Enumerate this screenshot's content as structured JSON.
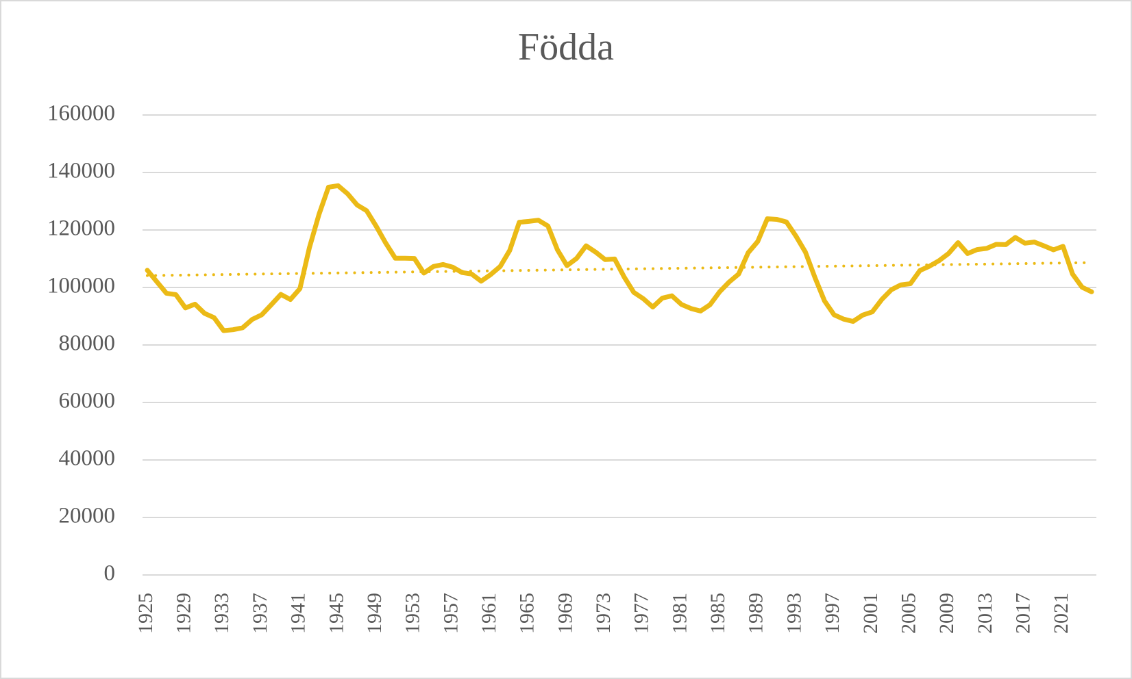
{
  "chart_data": {
    "type": "line",
    "title": "Födda",
    "x": [
      1925,
      1926,
      1927,
      1928,
      1929,
      1930,
      1931,
      1932,
      1933,
      1934,
      1935,
      1936,
      1937,
      1938,
      1939,
      1940,
      1941,
      1942,
      1943,
      1944,
      1945,
      1946,
      1947,
      1948,
      1949,
      1950,
      1951,
      1952,
      1953,
      1954,
      1955,
      1956,
      1957,
      1958,
      1959,
      1960,
      1961,
      1962,
      1963,
      1964,
      1965,
      1966,
      1967,
      1968,
      1969,
      1970,
      1971,
      1972,
      1973,
      1974,
      1975,
      1976,
      1977,
      1978,
      1979,
      1980,
      1981,
      1982,
      1983,
      1984,
      1985,
      1986,
      1987,
      1988,
      1989,
      1990,
      1991,
      1992,
      1993,
      1994,
      1995,
      1996,
      1997,
      1998,
      1999,
      2000,
      2001,
      2002,
      2003,
      2004,
      2005,
      2006,
      2007,
      2008,
      2009,
      2010,
      2011,
      2012,
      2013,
      2014,
      2015,
      2016,
      2017,
      2018,
      2019,
      2020,
      2021,
      2022,
      2023,
      2024
    ],
    "series": [
      {
        "color": "#ebba16",
        "values": [
          106000,
          102000,
          98000,
          97500,
          92900,
          94200,
          91000,
          89500,
          85000,
          85300,
          86000,
          88900,
          90500,
          94000,
          97600,
          95800,
          99600,
          113900,
          125400,
          134900,
          135400,
          132600,
          128700,
          126700,
          121300,
          115400,
          110200,
          110200,
          110100,
          105000,
          107300,
          108000,
          107100,
          105200,
          104700,
          102200,
          104500,
          107300,
          112900,
          122700,
          123000,
          123400,
          121400,
          113100,
          107600,
          110100,
          114500,
          112300,
          109700,
          109900,
          103600,
          98300,
          96100,
          93200,
          96300,
          97100,
          94100,
          92700,
          91800,
          94000,
          98500,
          101900,
          104700,
          112100,
          116000,
          123900,
          123700,
          122800,
          117900,
          112300,
          103400,
          95300,
          90500,
          89000,
          88200,
          90400,
          91500,
          95800,
          99200,
          100900,
          101300,
          105900,
          107400,
          109300,
          111800,
          115600,
          111800,
          113200,
          113600,
          115000,
          114900,
          117400,
          115400,
          115800,
          114500,
          113100,
          114300,
          104700,
          100100,
          98500
        ]
      }
    ],
    "trendline": "linear",
    "xlim": [
      1924.5,
      2024.5
    ],
    "xticks": [
      1925,
      1929,
      1933,
      1937,
      1941,
      1945,
      1949,
      1953,
      1957,
      1961,
      1965,
      1969,
      1973,
      1977,
      1981,
      1985,
      1989,
      1993,
      1997,
      2001,
      2005,
      2009,
      2013,
      2017,
      2021
    ],
    "ylim": [
      0,
      160000
    ],
    "yticks": [
      0,
      20000,
      40000,
      60000,
      80000,
      100000,
      120000,
      140000,
      160000
    ],
    "grid": true
  }
}
